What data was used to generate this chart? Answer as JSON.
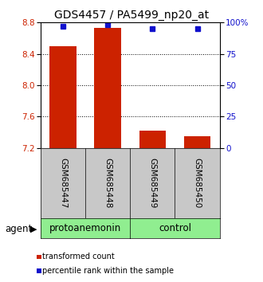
{
  "title": "GDS4457 / PA5499_np20_at",
  "samples": [
    "GSM685447",
    "GSM685448",
    "GSM685449",
    "GSM685450"
  ],
  "bar_values": [
    8.5,
    8.73,
    7.42,
    7.35
  ],
  "percentile_values": [
    97,
    98,
    95,
    95
  ],
  "groups": [
    {
      "label": "protoanemonin",
      "samples": [
        0,
        1
      ],
      "color": "#90EE90"
    },
    {
      "label": "control",
      "samples": [
        2,
        3
      ],
      "color": "#90EE90"
    }
  ],
  "ylim_left": [
    7.2,
    8.8
  ],
  "yticks_left": [
    7.2,
    7.6,
    8.0,
    8.4,
    8.8
  ],
  "yticks_right_pct": [
    0,
    25,
    50,
    75,
    100
  ],
  "bar_color": "#cc2200",
  "dot_color": "#1111cc",
  "bar_width": 0.6,
  "bar_color_left": "#cc2200",
  "ylabel_right_color": "#1111cc",
  "grid_color": "#000000",
  "title_fontsize": 10,
  "tick_fontsize": 7.5,
  "label_fontsize": 8.5,
  "sample_label_fontsize": 7.5,
  "group_label_fontsize": 8.5
}
